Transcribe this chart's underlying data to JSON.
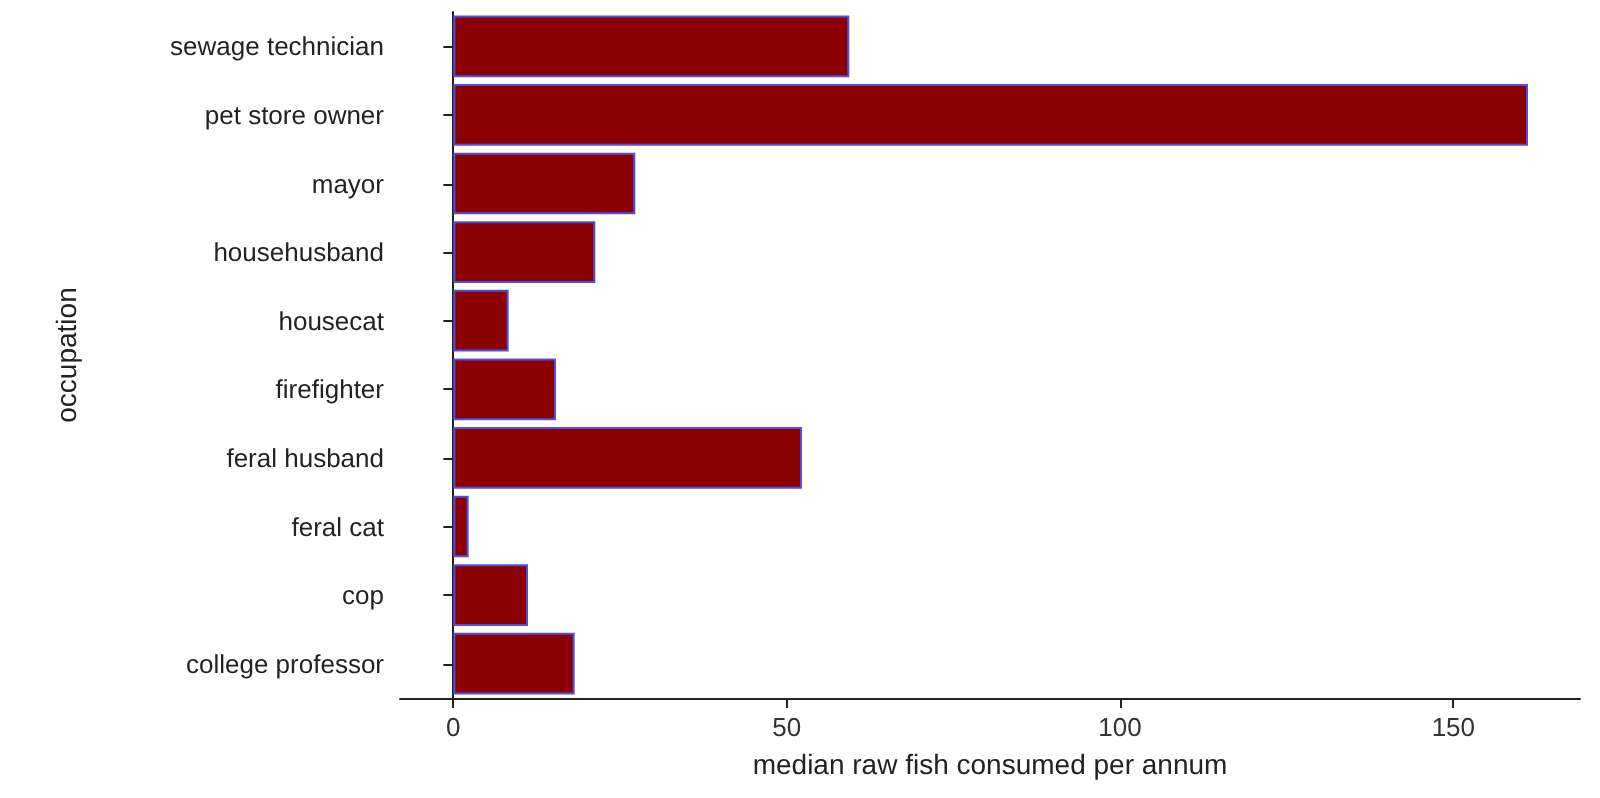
{
  "chart_data": {
    "type": "bar",
    "orientation": "horizontal",
    "xlabel": "median raw fish consumed per annum",
    "ylabel": "occupation",
    "categories": [
      "sewage technician",
      "pet store owner",
      "mayor",
      "househusband",
      "housecat",
      "firefighter",
      "feral husband",
      "feral cat",
      "cop",
      "college professor"
    ],
    "series": [
      {
        "color": "#8b0000",
        "values": [
          59.4,
          161.2,
          27.3,
          21.3,
          8.3,
          15.4,
          52.3,
          2.3,
          11.2,
          18.2
        ]
      }
    ],
    "xlim": [
      -8,
      169
    ],
    "xticks": [
      0,
      50,
      100,
      150
    ]
  }
}
